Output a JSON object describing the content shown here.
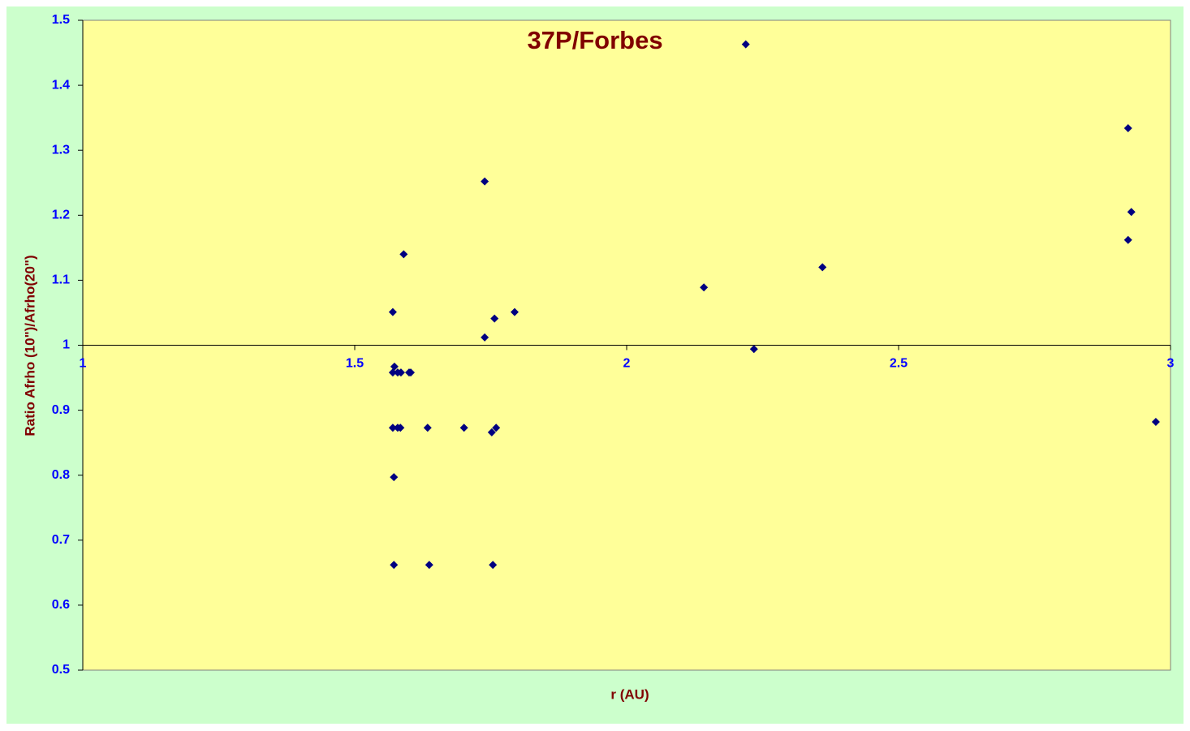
{
  "chart_data": {
    "type": "scatter",
    "title": "37P/Forbes",
    "x_label": "r (AU)",
    "y_label": "Ratio Afrho (10\")/Afrho(20\")",
    "x": [
      2.219,
      2.922,
      1.739,
      2.928,
      2.922,
      1.59,
      2.36,
      2.142,
      1.57,
      1.794,
      1.757,
      1.739,
      2.234,
      1.573,
      1.57,
      1.579,
      1.585,
      1.6,
      1.603,
      2.973,
      1.57,
      1.579,
      1.584,
      1.634,
      1.701,
      1.76,
      1.752,
      1.572,
      1.572,
      1.637,
      1.754
    ],
    "values": [
      1.463,
      1.334,
      1.252,
      1.205,
      1.162,
      1.14,
      1.12,
      1.089,
      1.051,
      1.051,
      1.041,
      1.012,
      0.994,
      0.967,
      0.958,
      0.958,
      0.958,
      0.958,
      0.958,
      0.882,
      0.873,
      0.873,
      0.873,
      0.873,
      0.873,
      0.873,
      0.866,
      0.797,
      0.662,
      0.662,
      0.662
    ],
    "color": "#000080",
    "xlim": [
      1,
      3
    ],
    "xticks": [
      1,
      1.5,
      2,
      2.5,
      3
    ],
    "ylim": [
      0.5,
      1.5
    ],
    "yticks": [
      0.5,
      0.6,
      0.7,
      0.8,
      0.9,
      1,
      1.1,
      1.2,
      1.3,
      1.4,
      1.5
    ],
    "x_axis_at_y": 1
  }
}
